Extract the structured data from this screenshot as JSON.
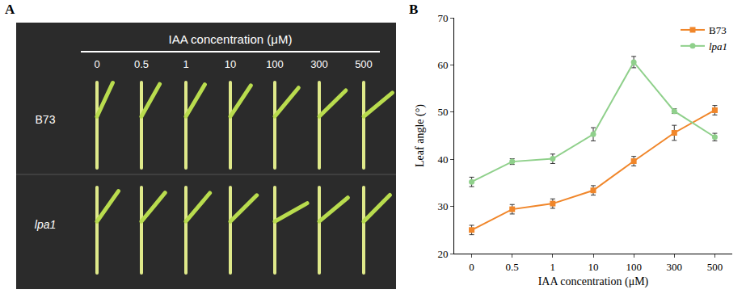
{
  "panel_labels": [
    "A",
    "B"
  ],
  "photo_panel": {
    "title": "IAA concentration (μM)",
    "columns": [
      "0",
      "0.5",
      "1",
      "10",
      "100",
      "300",
      "500"
    ],
    "rows": [
      "B73",
      "lpa1"
    ]
  },
  "chart_data": {
    "type": "line",
    "categories": [
      "0",
      "0.5",
      "1",
      "10",
      "100",
      "300",
      "500"
    ],
    "x_label": "IAA concentration (μM)",
    "y_label": "Leaf angle (°)",
    "ylim": [
      20,
      70
    ],
    "yticks": [
      20,
      30,
      40,
      50,
      60,
      70
    ],
    "grid": false,
    "legend": "top right",
    "series": [
      {
        "name": "B73",
        "color": "#f0862a",
        "marker": "square",
        "values": [
          25.0,
          29.4,
          30.6,
          33.4,
          39.6,
          45.6,
          50.4
        ],
        "errors": [
          1.0,
          1.0,
          1.0,
          1.0,
          1.0,
          1.6,
          1.0
        ]
      },
      {
        "name": "lpa1",
        "color": "#8fd08b",
        "marker": "circle",
        "values": [
          35.2,
          39.5,
          40.1,
          45.3,
          60.6,
          50.2,
          44.7
        ],
        "errors": [
          1.0,
          0.6,
          1.0,
          1.4,
          1.2,
          0.5,
          0.8
        ]
      }
    ]
  }
}
